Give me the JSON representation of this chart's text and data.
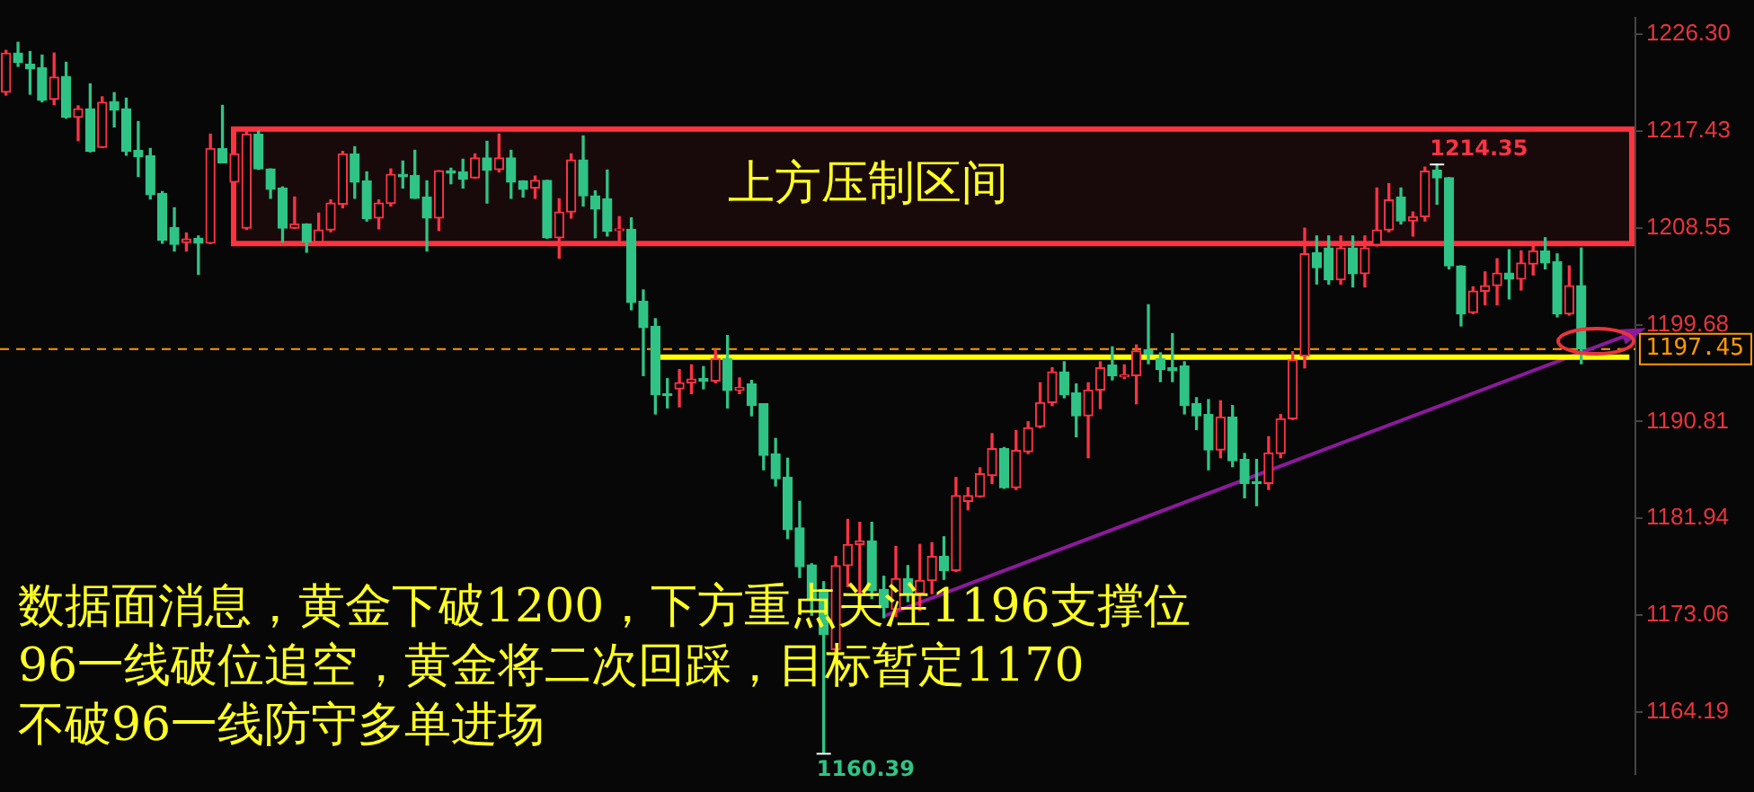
{
  "chart_data": {
    "type": "candlestick",
    "categories": [
      null,
      null,
      null,
      null,
      null,
      null,
      null,
      null,
      null,
      null,
      null,
      null,
      null,
      null,
      null,
      null,
      null,
      null,
      null,
      null,
      null,
      null,
      null,
      null,
      null,
      null,
      null,
      null,
      null,
      null,
      null,
      null,
      null,
      null,
      null,
      null,
      null,
      null,
      null,
      null,
      null,
      null,
      null,
      null,
      null,
      null,
      null,
      null,
      null,
      null,
      null,
      null,
      null,
      null,
      null,
      null,
      null,
      null,
      null,
      null,
      null,
      null,
      null,
      null,
      null,
      null,
      null,
      null,
      null,
      null,
      null,
      null,
      null,
      null,
      null,
      null,
      null,
      null,
      null,
      null,
      null,
      null,
      null,
      null,
      null,
      null,
      null,
      null,
      null,
      null,
      null,
      null,
      null,
      null,
      null,
      null,
      null,
      null,
      null,
      null,
      null,
      null,
      null,
      null,
      null,
      null,
      null,
      null,
      null,
      null,
      null,
      null,
      null,
      null,
      null,
      null,
      null,
      null,
      null,
      null,
      null,
      null,
      null,
      null,
      null,
      null,
      null,
      null,
      null,
      null,
      null,
      null,
      null,
      null,
      null,
      null
    ],
    "ohlc": [
      [
        1220.97,
        1224.8,
        1220.7,
        1224.54
      ],
      [
        1224.54,
        1225.53,
        1223.33,
        1223.71
      ],
      [
        1223.55,
        1224.7,
        1220.8,
        1223.11
      ],
      [
        1223.22,
        1224.37,
        1220.1,
        1220.26
      ],
      [
        1220.31,
        1224.54,
        1219.82,
        1222.34
      ],
      [
        1222.4,
        1223.71,
        1218.6,
        1218.67
      ],
      [
        1218.67,
        1219.71,
        1216.53,
        1219.44
      ],
      [
        1219.44,
        1221.74,
        1215.5,
        1215.54
      ],
      [
        1215.92,
        1220.53,
        1215.9,
        1220.04
      ],
      [
        1220.1,
        1220.92,
        1217.79,
        1219.33
      ],
      [
        1219.44,
        1220.42,
        1215.21,
        1215.54
      ],
      [
        1215.65,
        1218.28,
        1213.24,
        1215.05
      ],
      [
        1215.16,
        1215.81,
        1211.2,
        1211.59
      ],
      [
        1211.7,
        1211.86,
        1207.14,
        1207.42
      ],
      [
        1208.57,
        1210.38,
        1206.43,
        1207.03
      ],
      [
        1207.2,
        1208.08,
        1206.43,
        1207.53
      ],
      [
        1207.58,
        1207.8,
        1204.29,
        1207.14
      ],
      [
        1207.14,
        1217.13,
        1207.1,
        1215.81
      ],
      [
        1215.81,
        1219.76,
        1214.5,
        1214.5
      ],
      [
        1212.74,
        1215.6,
        1212.5,
        1215.32
      ],
      [
        1208.52,
        1217.4,
        1208.4,
        1217.13
      ],
      [
        1217.13,
        1217.4,
        1213.9,
        1213.95
      ],
      [
        1213.95,
        1213.95,
        1211.26,
        1212.08
      ],
      [
        1212.19,
        1212.3,
        1207.25,
        1208.52
      ],
      [
        1208.52,
        1211.37,
        1208.5,
        1208.9
      ],
      [
        1208.9,
        1208.9,
        1206.32,
        1207.25
      ],
      [
        1207.25,
        1209.89,
        1207.2,
        1208.35
      ],
      [
        1208.35,
        1211.1,
        1208.19,
        1210.82
      ],
      [
        1210.71,
        1215.54,
        1210.38,
        1215.32
      ],
      [
        1215.32,
        1215.98,
        1211.26,
        1212.74
      ],
      [
        1212.85,
        1213.67,
        1209.17,
        1209.4
      ],
      [
        1209.45,
        1211.1,
        1208.46,
        1210.82
      ],
      [
        1210.77,
        1213.95,
        1210.55,
        1213.45
      ],
      [
        1213.45,
        1214.66,
        1212.19,
        1213.23
      ],
      [
        1213.34,
        1215.65,
        1211.26,
        1211.26
      ],
      [
        1211.37,
        1212.85,
        1206.43,
        1209.45
      ],
      [
        1209.45,
        1213.78,
        1208.3,
        1213.78
      ],
      [
        1213.78,
        1214,
        1212.58,
        1213.56
      ],
      [
        1213.67,
        1214.83,
        1212.19,
        1213.02
      ],
      [
        1213.13,
        1215.32,
        1213.1,
        1214.94
      ],
      [
        1214.94,
        1216.47,
        1210.82,
        1213.84
      ],
      [
        1213.89,
        1217.13,
        1213.67,
        1214.94
      ],
      [
        1214.94,
        1215.65,
        1211.26,
        1212.74
      ],
      [
        1212.85,
        1212.85,
        1211.37,
        1212.08
      ],
      [
        1212.19,
        1213.29,
        1211.26,
        1212.9
      ],
      [
        1212.9,
        1212.9,
        1207.6,
        1207.64
      ],
      [
        1207.64,
        1211.2,
        1205.77,
        1210
      ],
      [
        1210,
        1215.32,
        1209.45,
        1214.77
      ],
      [
        1214.77,
        1216.97,
        1210.55,
        1211.48
      ],
      [
        1211.48,
        1211.92,
        1207.64,
        1210.27
      ],
      [
        1211.2,
        1213.84,
        1207.8,
        1208.24
      ],
      [
        1208.3,
        1209.56,
        1207.09,
        1208.46
      ],
      [
        1208.41,
        1209.45,
        1201.05,
        1201.71
      ],
      [
        1201.82,
        1202.86,
        1195.02,
        1199.41
      ],
      [
        1199.52,
        1200.23,
        1191.51,
        1193.26
      ],
      [
        1193.37,
        1194.74,
        1192.06,
        1193.21
      ],
      [
        1193.81,
        1195.57,
        1192.16,
        1194.36
      ],
      [
        1194.36,
        1196,
        1193.37,
        1194.69
      ],
      [
        1194.74,
        1195.84,
        1193.81,
        1194.52
      ],
      [
        1194.52,
        1197.38,
        1194.36,
        1196.55
      ],
      [
        1196.55,
        1198.69,
        1192.06,
        1193.65
      ],
      [
        1193.7,
        1194.8,
        1193.37,
        1193.92
      ],
      [
        1194.25,
        1194.58,
        1191.34,
        1192.27
      ],
      [
        1192.44,
        1192.44,
        1186.4,
        1187.72
      ],
      [
        1187.83,
        1189.26,
        1184.92,
        1185.58
      ],
      [
        1185.69,
        1187.45,
        1180.1,
        1180.92
      ],
      [
        1181.08,
        1183.5,
        1176.53,
        1177.51
      ],
      [
        1177.68,
        1177.79,
        1173.07,
        1174.61
      ],
      [
        1175.43,
        1176.14,
        1160.39,
        1171.32
      ],
      [
        1169.94,
        1178.45,
        1169.39,
        1177.62
      ],
      [
        1177.62,
        1181.85,
        1175.7,
        1179.55
      ],
      [
        1179.55,
        1181.58,
        1174.72,
        1179.88
      ],
      [
        1179.88,
        1181.58,
        1174.61,
        1175.32
      ],
      [
        1175.43,
        1176.64,
        1172.85,
        1173.78
      ],
      [
        1173.62,
        1179.38,
        1172.96,
        1176.42
      ],
      [
        1176.42,
        1177.62,
        1174.33,
        1175.05
      ],
      [
        1175.05,
        1179.55,
        1173.51,
        1176.25
      ],
      [
        1176.25,
        1179.71,
        1175.05,
        1178.45
      ],
      [
        1178.45,
        1180.26,
        1176.36,
        1177.18
      ],
      [
        1177.18,
        1185.69,
        1177.07,
        1184.04
      ],
      [
        1183.5,
        1184.76,
        1182.73,
        1184.04
      ],
      [
        1183.93,
        1186.57,
        1183.9,
        1186.02
      ],
      [
        1185.86,
        1189.7,
        1185.14,
        1188.32
      ],
      [
        1188.32,
        1188.43,
        1184.7,
        1184.76
      ],
      [
        1184.76,
        1189.97,
        1184.59,
        1188.16
      ],
      [
        1188.05,
        1190.79,
        1187.88,
        1190.24
      ],
      [
        1190.35,
        1194.36,
        1190.24,
        1192.55
      ],
      [
        1192.55,
        1195.73,
        1192.27,
        1195.35
      ],
      [
        1195.35,
        1196.28,
        1192.99,
        1193.26
      ],
      [
        1193.43,
        1194.25,
        1189.42,
        1191.34
      ],
      [
        1191.34,
        1194.36,
        1187.5,
        1193.7
      ],
      [
        1193.7,
        1196.28,
        1192,
        1195.73
      ],
      [
        1196,
        1197.65,
        1194.63,
        1195.02
      ],
      [
        1194.91,
        1196,
        1194.74,
        1195.08
      ],
      [
        1195.02,
        1197.82,
        1192.44,
        1197.27
      ],
      [
        1197.38,
        1201.5,
        1196.11,
        1196.99
      ],
      [
        1196.55,
        1197.1,
        1194.47,
        1195.57
      ],
      [
        1195.73,
        1198.86,
        1194.47,
        1195.46
      ],
      [
        1195.9,
        1196.28,
        1191.51,
        1192.27
      ],
      [
        1192.44,
        1192.99,
        1190.08,
        1191.34
      ],
      [
        1191.45,
        1192.82,
        1186.4,
        1188.21
      ],
      [
        1188.21,
        1192.71,
        1187.5,
        1191.23
      ],
      [
        1191.23,
        1192.27,
        1186.68,
        1187.23
      ],
      [
        1187.34,
        1187.88,
        1183.83,
        1185.14
      ],
      [
        1185.3,
        1187.34,
        1183.11,
        1185.14
      ],
      [
        1185.14,
        1189.42,
        1184.59,
        1187.94
      ],
      [
        1187.88,
        1191.45,
        1187.5,
        1191.07
      ],
      [
        1191.07,
        1197.21,
        1191,
        1196.44
      ],
      [
        1196.83,
        1208.52,
        1195.73,
        1206.16
      ],
      [
        1206.27,
        1207.8,
        1203.41,
        1204.9
      ],
      [
        1206.7,
        1207.8,
        1203.4,
        1203.8
      ],
      [
        1203.8,
        1207.8,
        1203.4,
        1206.7
      ],
      [
        1206.7,
        1207.8,
        1203.14,
        1204.35
      ],
      [
        1204.35,
        1207.8,
        1203.14,
        1206.7
      ],
      [
        1206.98,
        1212.19,
        1206.9,
        1208.35
      ],
      [
        1208.35,
        1212.58,
        1208.19,
        1211.1
      ],
      [
        1211.37,
        1212.19,
        1208.9,
        1209.17
      ],
      [
        1209.17,
        1210,
        1207.8,
        1209.56
      ],
      [
        1209.56,
        1214.11,
        1209.17,
        1213.73
      ],
      [
        1213.84,
        1214.35,
        1210.71,
        1213.13
      ],
      [
        1213.13,
        1213.13,
        1204.79,
        1205.06
      ],
      [
        1205.06,
        1205.06,
        1199.57,
        1200.67
      ],
      [
        1200.78,
        1203.14,
        1200.7,
        1202.75
      ],
      [
        1202.75,
        1204.51,
        1201.5,
        1203.25
      ],
      [
        1203.25,
        1205.72,
        1201.5,
        1204.4
      ],
      [
        1204.4,
        1206.54,
        1202.04,
        1203.85
      ],
      [
        1203.85,
        1206.43,
        1202.86,
        1205.33
      ],
      [
        1205.22,
        1206.98,
        1204.24,
        1206.43
      ],
      [
        1206.43,
        1207.64,
        1204.79,
        1205.33
      ],
      [
        1205.44,
        1206.16,
        1200.4,
        1200.67
      ],
      [
        1200.67,
        1205.06,
        1200.56,
        1203.25
      ],
      [
        1203.25,
        1206.7,
        1196.11,
        1197.45
      ],
      null,
      null,
      null,
      null
    ],
    "colors": [
      "#ff3344",
      "#2fc486",
      "#2fc486",
      "#2fc486",
      "#ff3344",
      "#2fc486",
      "#ff3344",
      "#2fc486",
      "#ff3344",
      "#2fc486",
      "#2fc486",
      "#2fc486",
      "#2fc486",
      "#2fc486",
      "#2fc486",
      "#ff3344",
      "#2fc486",
      "#ff3344",
      "#2fc486",
      "#ff3344",
      "#ff3344",
      "#2fc486",
      "#2fc486",
      "#2fc486",
      "#ff3344",
      "#2fc486",
      "#ff3344",
      "#ff3344",
      "#ff3344",
      "#2fc486",
      "#2fc486",
      "#ff3344",
      "#ff3344",
      "#2fc486",
      "#2fc486",
      "#2fc486",
      "#ff3344",
      "#2fc486",
      "#2fc486",
      "#ff3344",
      "#2fc486",
      "#ff3344",
      "#2fc486",
      "#2fc486",
      "#ff3344",
      "#2fc486",
      "#ff3344",
      "#ff3344",
      "#2fc486",
      "#2fc486",
      "#2fc486",
      "#ff3344",
      "#2fc486",
      "#2fc486",
      "#2fc486",
      "#2fc486",
      "#ff3344",
      "#ff3344",
      "#2fc486",
      "#ff3344",
      "#2fc486",
      "#ff3344",
      "#2fc486",
      "#2fc486",
      "#2fc486",
      "#2fc486",
      "#2fc486",
      "#2fc486",
      "#2fc486",
      "#ff3344",
      "#ff3344",
      "#ff3344",
      "#2fc486",
      "#2fc486",
      "#ff3344",
      "#2fc486",
      "#ff3344",
      "#ff3344",
      "#2fc486",
      "#ff3344",
      "#ff3344",
      "#ff3344",
      "#ff3344",
      "#2fc486",
      "#ff3344",
      "#ff3344",
      "#ff3344",
      "#ff3344",
      "#2fc486",
      "#2fc486",
      "#ff3344",
      "#ff3344",
      "#2fc486",
      "#ff3344",
      "#ff3344",
      "#2fc486",
      "#2fc486",
      "#2fc486",
      "#2fc486",
      "#2fc486",
      "#2fc486",
      "#ff3344",
      "#2fc486",
      "#2fc486",
      "#2fc486",
      "#ff3344",
      "#ff3344",
      "#ff3344",
      "#ff3344",
      "#2fc486",
      "#2fc486",
      "#ff3344",
      "#2fc486",
      "#ff3344",
      "#ff3344",
      "#ff3344",
      "#2fc486",
      "#ff3344",
      "#ff3344",
      "#2fc486",
      "#2fc486",
      "#2fc486",
      "#ff3344",
      "#ff3344",
      "#ff3344",
      "#2fc486",
      "#ff3344",
      "#ff3344",
      "#2fc486",
      "#2fc486",
      "#ff3344",
      "#2fc486",
      null,
      null,
      null,
      null
    ],
    "series": [
      {
        "type": "line",
        "color": "#ffff00",
        "values": [
          null,
          null,
          null,
          null,
          null,
          null,
          null,
          null,
          null,
          null,
          null,
          null,
          null,
          null,
          null,
          null,
          null,
          null,
          null,
          null,
          null,
          null,
          null,
          null,
          null,
          null,
          null,
          null,
          null,
          null,
          null,
          null,
          null,
          null,
          null,
          null,
          null,
          null,
          null,
          null,
          null,
          null,
          null,
          null,
          null,
          null,
          null,
          null,
          null,
          null,
          null,
          null,
          null,
          null,
          1196.7,
          null,
          null,
          null,
          null,
          null,
          null,
          null,
          null,
          null,
          null,
          null,
          null,
          null,
          null,
          null,
          null,
          null,
          null,
          null,
          null,
          null,
          null,
          null,
          null,
          null,
          null,
          null,
          null,
          null,
          null,
          null,
          null,
          null,
          null,
          null,
          null,
          null,
          null,
          null,
          null,
          null,
          null,
          null,
          null,
          null,
          null,
          null,
          null,
          null,
          null,
          null,
          null,
          null,
          null,
          null,
          null,
          null,
          null,
          null,
          null,
          null,
          null,
          null,
          null,
          null,
          null,
          null,
          null,
          null,
          null,
          null,
          null,
          null,
          null,
          null,
          null,
          null,
          null,
          null,
          null,
          1196.7
        ]
      },
      {
        "type": "line",
        "color": "#8b1a9b",
        "values": [
          null,
          null,
          null,
          null,
          null,
          null,
          null,
          null,
          null,
          null,
          null,
          null,
          null,
          null,
          null,
          null,
          null,
          null,
          null,
          null,
          null,
          null,
          null,
          null,
          null,
          null,
          null,
          null,
          null,
          null,
          null,
          null,
          null,
          null,
          null,
          null,
          null,
          null,
          null,
          null,
          null,
          null,
          null,
          null,
          null,
          null,
          null,
          null,
          null,
          null,
          null,
          null,
          null,
          null,
          null,
          null,
          null,
          null,
          null,
          null,
          null,
          null,
          null,
          null,
          null,
          null,
          null,
          null,
          null,
          null,
          null,
          null,
          null,
          1173.0,
          null,
          null,
          null,
          null,
          null,
          null,
          null,
          null,
          null,
          null,
          null,
          null,
          null,
          null,
          null,
          null,
          null,
          null,
          null,
          null,
          null,
          null,
          null,
          null,
          null,
          null,
          null,
          null,
          null,
          null,
          null,
          null,
          null,
          null,
          null,
          null,
          null,
          null,
          null,
          null,
          null,
          null,
          null,
          null,
          null,
          null,
          null,
          null,
          null,
          null,
          null,
          null,
          null,
          null,
          null,
          null,
          null,
          null,
          null,
          null,
          null,
          1198.8
        ]
      }
    ],
    "ylim": [
      1158.5,
      1227.8
    ],
    "yticks": [
      {
        "value": 1226.3,
        "label": "1226.30"
      },
      {
        "value": 1217.43,
        "label": "1217.43"
      },
      {
        "value": 1208.55,
        "label": "1208.55"
      },
      {
        "value": 1199.68,
        "label": "1199.68"
      },
      {
        "value": 1190.81,
        "label": "1190.81"
      },
      {
        "value": 1181.94,
        "label": "1181.94"
      },
      {
        "value": 1173.06,
        "label": "1173.06"
      },
      {
        "value": 1164.19,
        "label": "1164.19"
      }
    ],
    "ref_lines": [
      {
        "axis": "y",
        "value": 1197.45,
        "label": "1197.45",
        "color": "#ff9900",
        "line_style": "dashed"
      }
    ],
    "bands": [
      {
        "axis": "y",
        "from": 1207.1,
        "to": 1217.6,
        "label": "上方压制区间",
        "color": "#ff3340"
      }
    ],
    "annotations": [
      "1214.35",
      "1160.39",
      "数据面消息，黄金下破1200，下方重点关注1196支撑位",
      "96一线破位追空，黄金将二次回踩，目标暂定1170",
      "不破96一线防守多单进场"
    ],
    "legend": false
  }
}
